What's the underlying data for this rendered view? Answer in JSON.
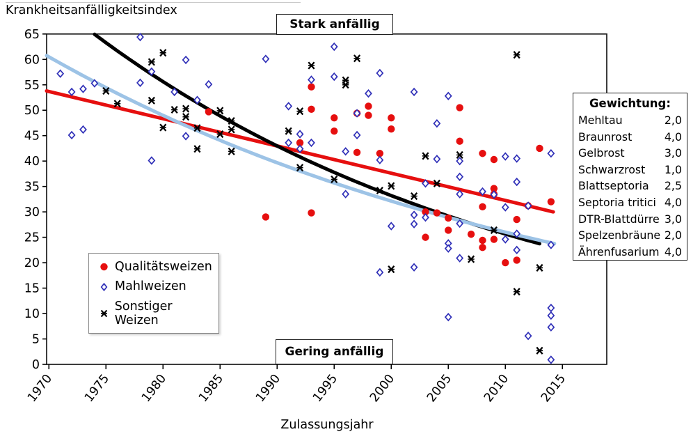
{
  "colors": {
    "quality_red": "#e60f0f",
    "diamond_blue": "#3030b8",
    "trend_lightblue": "#9dc3e6",
    "trend_black": "#000000",
    "axis_black": "#1a1a1a"
  },
  "y_axis_title": "Krankheitsanfälligkeitsindex",
  "x_axis_title": "Zulassungsjahr",
  "annotations": {
    "top": "Stark anfällig",
    "bottom": "Gering anfällig"
  },
  "legend": {
    "items": [
      {
        "label": "Qualitätsweizen",
        "marker": "circle"
      },
      {
        "label": "Mahlweizen",
        "marker": "diamond"
      },
      {
        "label": "Sonstiger Weizen",
        "marker": "xmark"
      }
    ]
  },
  "weights_panel": {
    "title": "Gewichtung:",
    "rows": [
      {
        "label": "Mehltau",
        "value": "2,0"
      },
      {
        "label": "Braunrost",
        "value": "4,0"
      },
      {
        "label": "Gelbrost",
        "value": "3,0"
      },
      {
        "label": "Schwarzrost",
        "value": "1,0"
      },
      {
        "label": "Blattseptoria",
        "value": "2,5"
      },
      {
        "label": "Septoria tritici",
        "value": "4,0"
      },
      {
        "label": "DTR-Blattdürre",
        "value": "3,0"
      },
      {
        "label": "Spelzenbräune",
        "value": "2,0"
      },
      {
        "label": "Ährenfusarium",
        "value": "4,0"
      }
    ]
  },
  "chart_data": {
    "type": "scatter",
    "title": "",
    "xlabel": "Zulassungsjahr",
    "ylabel": "Krankheitsanfälligkeitsindex",
    "xlim": [
      1969.8,
      2018.8
    ],
    "ylim": [
      0,
      65
    ],
    "x_ticks": [
      1970,
      1975,
      1980,
      1985,
      1990,
      1995,
      2000,
      2005,
      2010,
      2015
    ],
    "y_ticks": [
      0,
      5,
      10,
      15,
      20,
      25,
      30,
      35,
      40,
      45,
      50,
      55,
      60,
      65
    ],
    "grid": false,
    "legend_position": "inside-left-bottom",
    "series": [
      {
        "name": "Qualitätsweizen",
        "marker": "circle",
        "color": "#e60f0f",
        "points": [
          [
            1984,
            49.7
          ],
          [
            1989,
            29.0
          ],
          [
            1992,
            43.6
          ],
          [
            1993,
            54.6
          ],
          [
            1993,
            50.2
          ],
          [
            1993,
            29.8
          ],
          [
            1995,
            48.5
          ],
          [
            1995,
            45.9
          ],
          [
            1997,
            49.4
          ],
          [
            1997,
            41.7
          ],
          [
            1998,
            50.8
          ],
          [
            1998,
            49.0
          ],
          [
            1999,
            41.5
          ],
          [
            2000,
            48.5
          ],
          [
            2000,
            46.3
          ],
          [
            2003,
            30.0
          ],
          [
            2003,
            25.0
          ],
          [
            2004,
            29.8
          ],
          [
            2005,
            28.8
          ],
          [
            2005,
            26.4
          ],
          [
            2006,
            50.5
          ],
          [
            2006,
            43.9
          ],
          [
            2007,
            25.6
          ],
          [
            2008,
            41.5
          ],
          [
            2008,
            31.0
          ],
          [
            2008,
            24.4
          ],
          [
            2008,
            23.0
          ],
          [
            2009,
            40.3
          ],
          [
            2009,
            34.6
          ],
          [
            2009,
            33.5
          ],
          [
            2009,
            24.6
          ],
          [
            2010,
            20.0
          ],
          [
            2011,
            28.5
          ],
          [
            2011,
            20.5
          ],
          [
            2012,
            31.2
          ],
          [
            2013,
            42.5
          ],
          [
            2014,
            32.0
          ]
        ]
      },
      {
        "name": "Mahlweizen",
        "marker": "diamond",
        "color": "#3030b8",
        "points": [
          [
            1971,
            57.2
          ],
          [
            1972,
            53.6
          ],
          [
            1972,
            45.1
          ],
          [
            1973,
            54.2
          ],
          [
            1973,
            46.2
          ],
          [
            1974,
            55.3
          ],
          [
            1978,
            64.4
          ],
          [
            1978,
            55.4
          ],
          [
            1979,
            57.6
          ],
          [
            1979,
            40.1
          ],
          [
            1981,
            53.6
          ],
          [
            1982,
            59.9
          ],
          [
            1982,
            44.9
          ],
          [
            1983,
            52.0
          ],
          [
            1984,
            55.1
          ],
          [
            1989,
            60.1
          ],
          [
            1991,
            50.8
          ],
          [
            1991,
            43.6
          ],
          [
            1992,
            45.3
          ],
          [
            1992,
            42.4
          ],
          [
            1993,
            56.0
          ],
          [
            1993,
            43.6
          ],
          [
            1995,
            62.5
          ],
          [
            1995,
            56.6
          ],
          [
            1996,
            41.9
          ],
          [
            1996,
            33.5
          ],
          [
            1997,
            49.4
          ],
          [
            1997,
            45.1
          ],
          [
            1998,
            53.3
          ],
          [
            1999,
            57.3
          ],
          [
            1999,
            40.2
          ],
          [
            1999,
            18.1
          ],
          [
            2000,
            27.2
          ],
          [
            2002,
            53.6
          ],
          [
            2002,
            29.4
          ],
          [
            2002,
            27.6
          ],
          [
            2002,
            19.1
          ],
          [
            2003,
            35.6
          ],
          [
            2003,
            28.9
          ],
          [
            2004,
            47.4
          ],
          [
            2004,
            40.4
          ],
          [
            2005,
            52.8
          ],
          [
            2005,
            23.8
          ],
          [
            2005,
            22.8
          ],
          [
            2005,
            9.3
          ],
          [
            2006,
            40.0
          ],
          [
            2006,
            36.9
          ],
          [
            2006,
            33.5
          ],
          [
            2006,
            27.7
          ],
          [
            2006,
            20.9
          ],
          [
            2008,
            34.0
          ],
          [
            2009,
            33.4
          ],
          [
            2010,
            40.9
          ],
          [
            2010,
            30.9
          ],
          [
            2010,
            24.6
          ],
          [
            2011,
            40.5
          ],
          [
            2011,
            35.9
          ],
          [
            2011,
            25.7
          ],
          [
            2011,
            22.5
          ],
          [
            2012,
            31.2
          ],
          [
            2012,
            5.6
          ],
          [
            2014,
            41.5
          ],
          [
            2014,
            23.5
          ],
          [
            2014,
            11.1
          ],
          [
            2014,
            9.6
          ],
          [
            2014,
            7.3
          ],
          [
            2014,
            0.9
          ]
        ]
      },
      {
        "name": "Sonstiger Weizen",
        "marker": "xmark",
        "color": "#000000",
        "points": [
          [
            1975,
            53.8
          ],
          [
            1976,
            51.3
          ],
          [
            1979,
            59.5
          ],
          [
            1979,
            51.9
          ],
          [
            1980,
            61.3
          ],
          [
            1980,
            46.6
          ],
          [
            1981,
            50.1
          ],
          [
            1982,
            50.3
          ],
          [
            1982,
            48.7
          ],
          [
            1983,
            46.5
          ],
          [
            1983,
            42.4
          ],
          [
            1985,
            49.9
          ],
          [
            1985,
            45.3
          ],
          [
            1986,
            47.9
          ],
          [
            1986,
            46.2
          ],
          [
            1986,
            41.9
          ],
          [
            1991,
            45.9
          ],
          [
            1992,
            49.8
          ],
          [
            1992,
            38.7
          ],
          [
            1993,
            58.8
          ],
          [
            1995,
            36.4
          ],
          [
            1996,
            55.9
          ],
          [
            1996,
            55.0
          ],
          [
            1997,
            60.2
          ],
          [
            1999,
            34.2
          ],
          [
            2000,
            35.1
          ],
          [
            2000,
            18.7
          ],
          [
            2002,
            33.1
          ],
          [
            2003,
            41.0
          ],
          [
            2004,
            35.6
          ],
          [
            2006,
            41.2
          ],
          [
            2007,
            20.7
          ],
          [
            2009,
            26.4
          ],
          [
            2011,
            60.9
          ],
          [
            2011,
            14.3
          ],
          [
            2013,
            19.0
          ],
          [
            2013,
            2.7
          ]
        ]
      }
    ],
    "trend_lines": [
      {
        "series": "Qualitätsweizen",
        "type": "linear",
        "color": "#e60f0f",
        "x_start": 1969.8,
        "y_start": 53.8,
        "x_end": 2014.2,
        "y_end": 30.0
      },
      {
        "series": "Sonstiger Weizen",
        "type": "exponential",
        "color": "#000000",
        "a": 72.0,
        "k": 0.0258,
        "x_start": 1974.0,
        "x_end": 2013.0
      },
      {
        "series": "Mahlweizen",
        "type": "exponential",
        "color": "#9dc3e6",
        "a": 60.5,
        "k": 0.0211,
        "x_start": 1969.8,
        "x_end": 2014.2
      }
    ]
  }
}
